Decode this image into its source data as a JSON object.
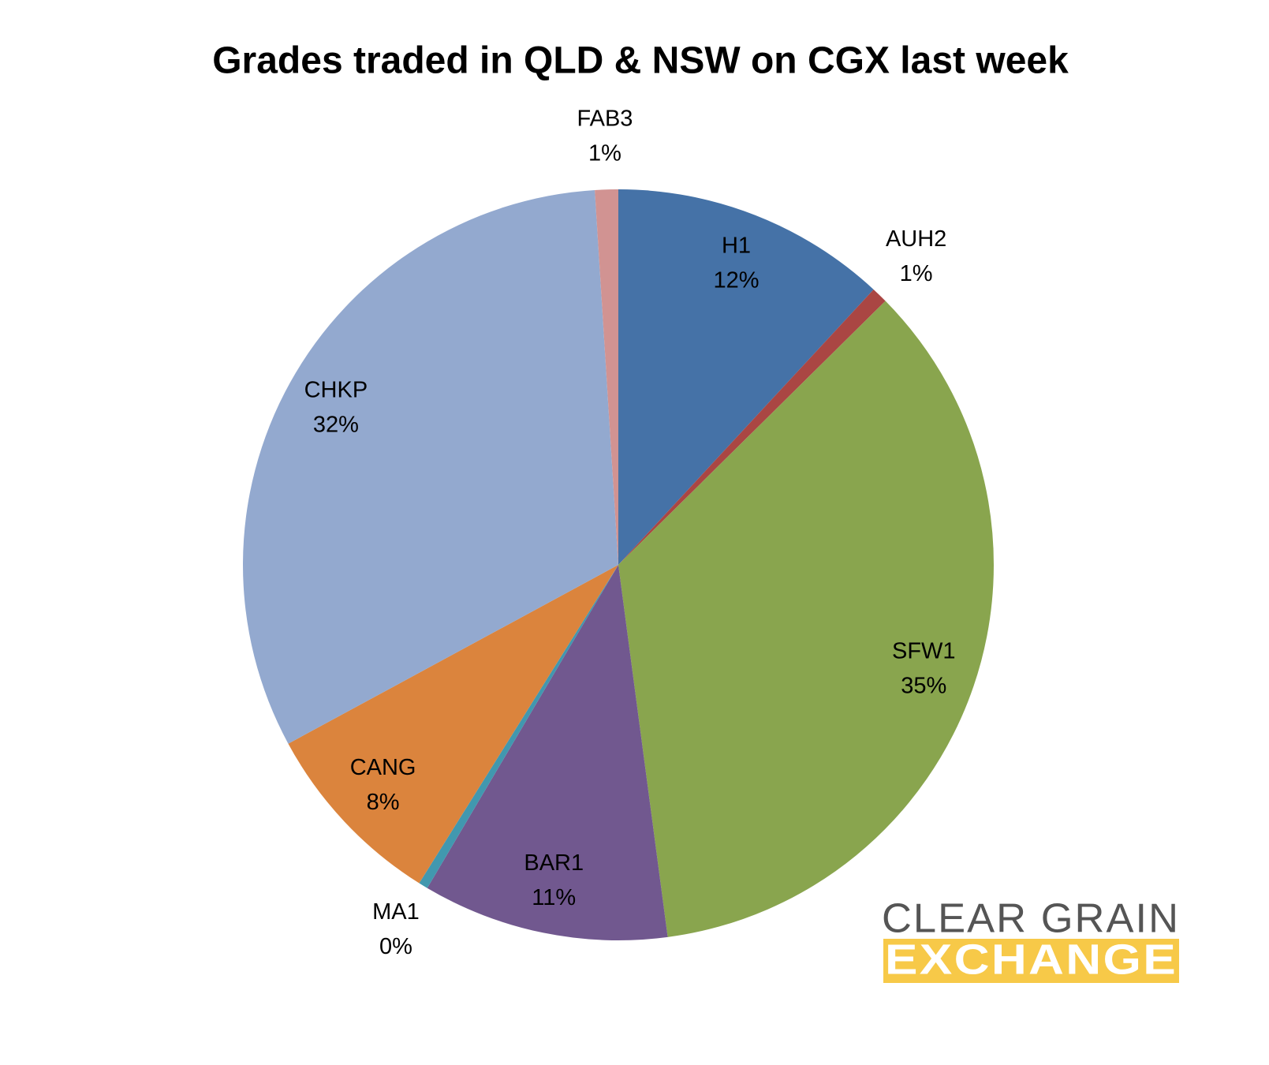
{
  "chart_data": {
    "type": "pie",
    "title": "Grades traded in QLD & NSW on CGX last week",
    "categories": [
      "H1",
      "AUH2",
      "SFW1",
      "BAR1",
      "MA1",
      "CANG",
      "CHKP",
      "FAB3"
    ],
    "values": [
      11.9,
      0.7,
      35.3,
      10.6,
      0.4,
      8.2,
      31.9,
      1.0
    ],
    "value_labels": [
      "12%",
      "1%",
      "35%",
      "11%",
      "0%",
      "8%",
      "32%",
      "1%"
    ],
    "colors": [
      "#4572a7",
      "#aa4643",
      "#89a54e",
      "#71588f",
      "#4198af",
      "#db843d",
      "#93a9cf",
      "#d19392"
    ]
  },
  "logo": {
    "line1": "CLEAR GRAIN",
    "line2": "EXCHANGE"
  }
}
